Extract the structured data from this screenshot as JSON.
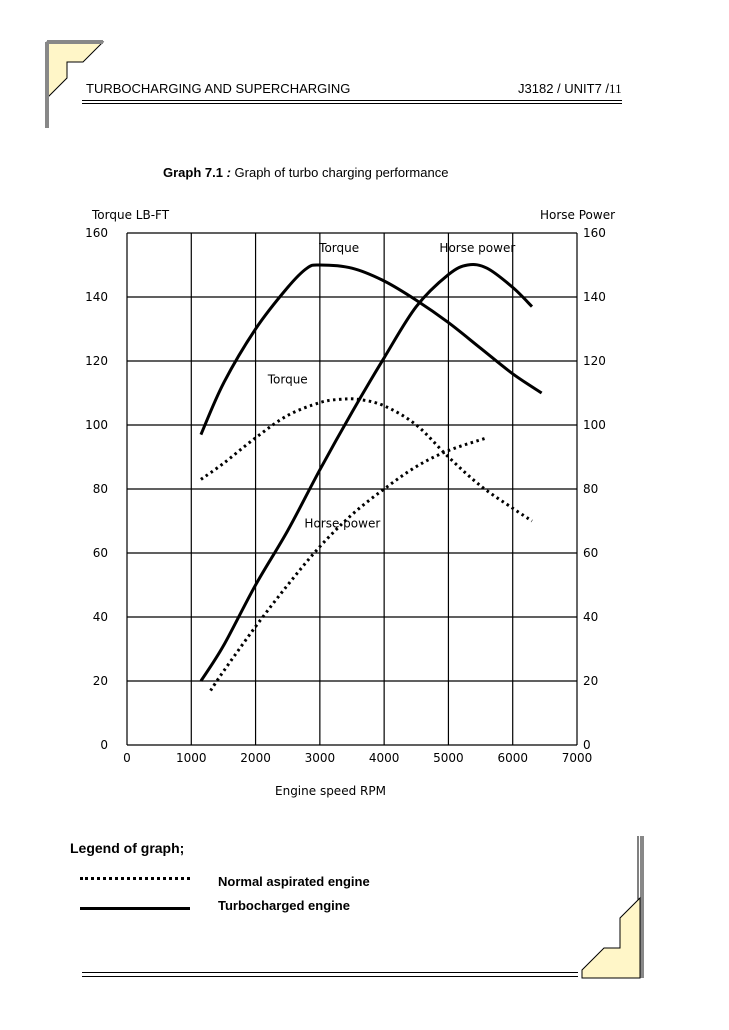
{
  "header": {
    "title": "TURBOCHARGING AND SUPERCHARGING",
    "page_ref": "J3182 / UNIT7 /",
    "page_num": "11"
  },
  "caption": {
    "label": "Graph 7.1",
    "separator": " : ",
    "text": "Graph of turbo charging performance"
  },
  "chart_data": {
    "type": "line",
    "xlabel": "Engine speed RPM",
    "ylabel_left": "Torque LB-FT",
    "ylabel_right": "Horse Power",
    "xlim": [
      0,
      7000
    ],
    "ylim": [
      0,
      160
    ],
    "x_ticks": [
      "0",
      "1000",
      "2000",
      "3000",
      "4000",
      "5000",
      "6000",
      "7000"
    ],
    "y_ticks": [
      "0",
      "20",
      "40",
      "60",
      "80",
      "100",
      "120",
      "140",
      "160"
    ],
    "grid": true,
    "series": [
      {
        "name": "Torque",
        "style": "solid",
        "points": [
          [
            1150,
            97
          ],
          [
            1500,
            113
          ],
          [
            2000,
            130
          ],
          [
            2500,
            143
          ],
          [
            2800,
            149
          ],
          [
            3000,
            150
          ],
          [
            3500,
            149
          ],
          [
            4000,
            145
          ],
          [
            4500,
            139
          ],
          [
            5000,
            132
          ],
          [
            5500,
            124
          ],
          [
            6000,
            116
          ],
          [
            6450,
            110
          ]
        ]
      },
      {
        "name": "Horse power",
        "style": "solid",
        "points": [
          [
            1150,
            20
          ],
          [
            1500,
            31
          ],
          [
            2000,
            50
          ],
          [
            2500,
            67
          ],
          [
            3000,
            86
          ],
          [
            3500,
            104
          ],
          [
            4000,
            121
          ],
          [
            4500,
            137
          ],
          [
            5000,
            147
          ],
          [
            5300,
            150
          ],
          [
            5600,
            149
          ],
          [
            6000,
            143
          ],
          [
            6300,
            137
          ]
        ]
      },
      {
        "name": "Torque",
        "style": "dotted",
        "points": [
          [
            1150,
            83
          ],
          [
            1500,
            88
          ],
          [
            2000,
            96
          ],
          [
            2500,
            103
          ],
          [
            3000,
            107
          ],
          [
            3300,
            108
          ],
          [
            3600,
            108
          ],
          [
            4000,
            106
          ],
          [
            4500,
            100
          ],
          [
            5000,
            90
          ],
          [
            5500,
            81
          ],
          [
            6000,
            74
          ],
          [
            6300,
            70
          ]
        ]
      },
      {
        "name": "Horse power",
        "style": "dotted",
        "points": [
          [
            1300,
            17
          ],
          [
            1500,
            23
          ],
          [
            2000,
            37
          ],
          [
            2500,
            50
          ],
          [
            3000,
            62
          ],
          [
            3500,
            72
          ],
          [
            4000,
            80
          ],
          [
            4500,
            87
          ],
          [
            5000,
            92
          ],
          [
            5600,
            96
          ]
        ]
      }
    ],
    "annotations": [
      {
        "text": "Torque",
        "x": 3300,
        "y": 154
      },
      {
        "text": "Horse power",
        "x": 5450,
        "y": 154
      },
      {
        "text": "Torque",
        "x": 2500,
        "y": 113
      },
      {
        "text": "Horse power",
        "x": 3350,
        "y": 68
      }
    ]
  },
  "legend": {
    "title": "Legend of graph;",
    "items": [
      {
        "label": "Normal aspirated engine",
        "style": "dotted"
      },
      {
        "label": "Turbocharged engine",
        "style": "solid"
      }
    ]
  }
}
